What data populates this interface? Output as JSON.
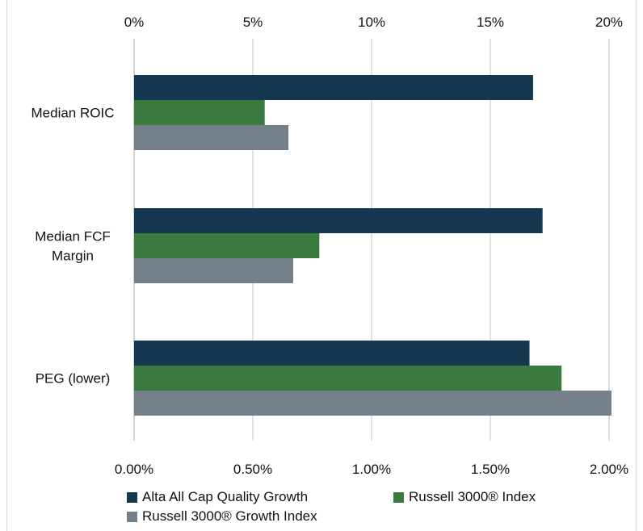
{
  "chart_data": {
    "type": "bar",
    "orientation": "horizontal",
    "categories": [
      "Median ROIC",
      "Median FCF Margin",
      "PEG (lower)"
    ],
    "category_labels": [
      [
        "Median ROIC"
      ],
      [
        "Median FCF",
        "Margin"
      ],
      [
        "PEG (lower)"
      ]
    ],
    "series": [
      {
        "name": "Alta All Cap Quality Growth",
        "color": "#14384f",
        "values": [
          16.8,
          17.2,
          1.665
        ]
      },
      {
        "name": "Russell 3000® Index",
        "color": "#3a7a3e",
        "values": [
          5.5,
          7.8,
          1.8
        ]
      },
      {
        "name": "Russell 3000® Growth Index",
        "color": "#737f89",
        "values": [
          6.5,
          6.7,
          2.01
        ]
      }
    ],
    "top_axis": {
      "applies_to": [
        "Median ROIC",
        "Median FCF Margin"
      ],
      "ticks": [
        "0%",
        "5%",
        "10%",
        "15%",
        "20%"
      ],
      "range": [
        0,
        20
      ]
    },
    "bottom_axis": {
      "applies_to": [
        "PEG (lower)"
      ],
      "ticks": [
        "0.00%",
        "0.50%",
        "1.00%",
        "1.50%",
        "2.00%"
      ],
      "range": [
        0,
        2
      ]
    },
    "grid": true,
    "legend": "bottom"
  }
}
